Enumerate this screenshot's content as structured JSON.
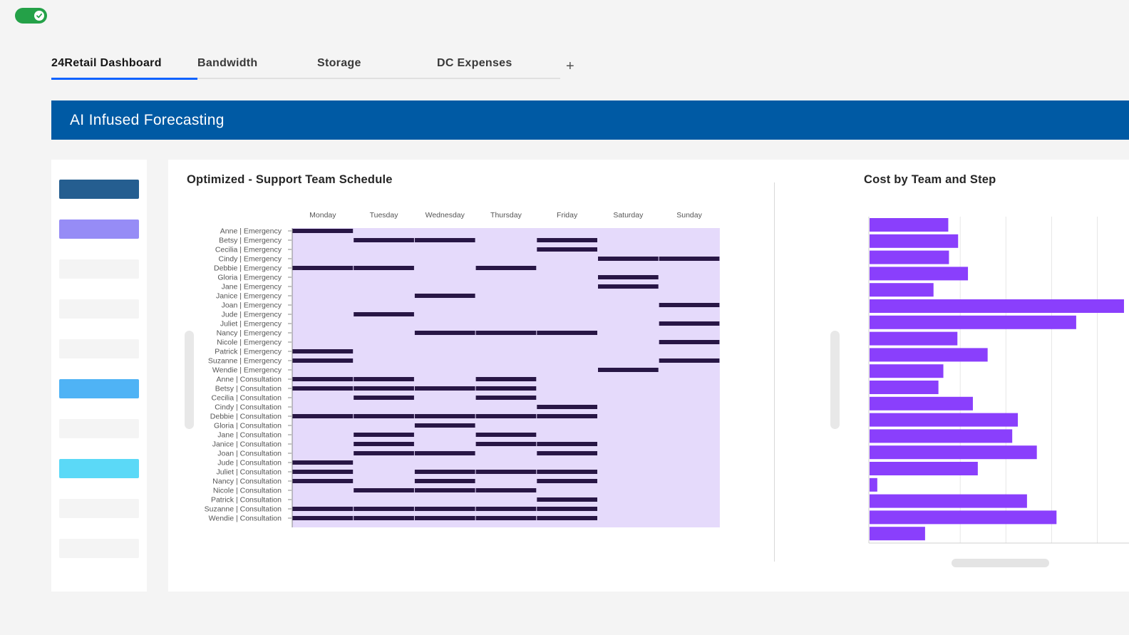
{
  "toggle": {
    "state": "on",
    "icon": "checkmark-icon"
  },
  "tabs": [
    {
      "label": "24Retail Dashboard",
      "active": true
    },
    {
      "label": "Bandwidth",
      "active": false
    },
    {
      "label": "Storage",
      "active": false
    },
    {
      "label": "DC Expenses",
      "active": false
    }
  ],
  "tab_add": {
    "label": "+",
    "icon": "plus-icon"
  },
  "banner": {
    "title": "AI Infused Forecasting"
  },
  "sidebar": {
    "swatches": [
      "#255e90",
      "#968cf6",
      "#f4f4f4",
      "#f4f4f4",
      "#f4f4f4",
      "#4fb3f5",
      "#f4f4f4",
      "#5bd9f7",
      "#f4f4f4",
      "#f4f4f4"
    ]
  },
  "colors": {
    "accent": "#0f62fe",
    "banner": "#005aa4",
    "toggle_on": "#24a148",
    "heat_bg": "#e5dafb",
    "heat_on": "#281645",
    "bar": "#8a3ffc"
  },
  "schedule": {
    "title": "Optimized - Support Team Schedule"
  },
  "cost": {
    "title": "Cost by Team and Step"
  },
  "chart_data": [
    {
      "type": "heatmap",
      "title": "Optimized - Support Team Schedule",
      "x": [
        "Monday",
        "Tuesday",
        "Wednesday",
        "Thursday",
        "Friday",
        "Saturday",
        "Sunday"
      ],
      "y": [
        "Anne | Emergency",
        "Betsy | Emergency",
        "Cecilia | Emergency",
        "Cindy | Emergency",
        "Debbie | Emergency",
        "Gloria | Emergency",
        "Jane | Emergency",
        "Janice | Emergency",
        "Joan | Emergency",
        "Jude | Emergency",
        "Juliet | Emergency",
        "Nancy | Emergency",
        "Nicole | Emergency",
        "Patrick | Emergency",
        "Suzanne | Emergency",
        "Wendie | Emergency",
        "Anne | Consultation",
        "Betsy | Consultation",
        "Cecilia | Consultation",
        "Cindy | Consultation",
        "Debbie | Consultation",
        "Gloria | Consultation",
        "Jane | Consultation",
        "Janice | Consultation",
        "Joan | Consultation",
        "Jude | Consultation",
        "Juliet | Consultation",
        "Nancy | Consultation",
        "Nicole | Consultation",
        "Patrick | Consultation",
        "Suzanne | Consultation",
        "Wendie | Consultation"
      ],
      "scheduled": [
        [
          1,
          0,
          0,
          0,
          0,
          0,
          0
        ],
        [
          0,
          1,
          1,
          0,
          1,
          0,
          0
        ],
        [
          0,
          0,
          0,
          0,
          1,
          0,
          0
        ],
        [
          0,
          0,
          0,
          0,
          0,
          1,
          1
        ],
        [
          1,
          1,
          0,
          1,
          0,
          0,
          0
        ],
        [
          0,
          0,
          0,
          0,
          0,
          1,
          0
        ],
        [
          0,
          0,
          0,
          0,
          0,
          1,
          0
        ],
        [
          0,
          0,
          1,
          0,
          0,
          0,
          0
        ],
        [
          0,
          0,
          0,
          0,
          0,
          0,
          1
        ],
        [
          0,
          1,
          0,
          0,
          0,
          0,
          0
        ],
        [
          0,
          0,
          0,
          0,
          0,
          0,
          1
        ],
        [
          0,
          0,
          1,
          1,
          1,
          0,
          0
        ],
        [
          0,
          0,
          0,
          0,
          0,
          0,
          1
        ],
        [
          1,
          0,
          0,
          0,
          0,
          0,
          0
        ],
        [
          1,
          0,
          0,
          0,
          0,
          0,
          1
        ],
        [
          0,
          0,
          0,
          0,
          0,
          1,
          0
        ],
        [
          1,
          1,
          0,
          1,
          0,
          0,
          0
        ],
        [
          1,
          1,
          1,
          1,
          0,
          0,
          0
        ],
        [
          0,
          1,
          0,
          1,
          0,
          0,
          0
        ],
        [
          0,
          0,
          0,
          0,
          1,
          0,
          0
        ],
        [
          1,
          1,
          1,
          1,
          1,
          0,
          0
        ],
        [
          0,
          0,
          1,
          0,
          0,
          0,
          0
        ],
        [
          0,
          1,
          0,
          1,
          0,
          0,
          0
        ],
        [
          0,
          1,
          0,
          1,
          1,
          0,
          0
        ],
        [
          0,
          1,
          1,
          0,
          1,
          0,
          0
        ],
        [
          1,
          0,
          0,
          0,
          0,
          0,
          0
        ],
        [
          1,
          0,
          1,
          1,
          1,
          0,
          0
        ],
        [
          1,
          0,
          1,
          0,
          1,
          0,
          0
        ],
        [
          0,
          1,
          1,
          1,
          0,
          0,
          0
        ],
        [
          0,
          0,
          0,
          0,
          1,
          0,
          0
        ],
        [
          1,
          1,
          1,
          1,
          1,
          0,
          0
        ],
        [
          1,
          1,
          1,
          1,
          1,
          0,
          0
        ]
      ]
    },
    {
      "type": "bar",
      "orientation": "horizontal",
      "title": "Cost by Team and Step",
      "values": [
        112,
        126,
        113,
        140,
        91,
        362,
        294,
        125,
        168,
        105,
        98,
        147,
        211,
        203,
        238,
        154,
        11,
        224,
        266,
        79
      ],
      "xlim": [
        0,
        360
      ],
      "gridlines": [
        130,
        195,
        260,
        325
      ]
    }
  ]
}
